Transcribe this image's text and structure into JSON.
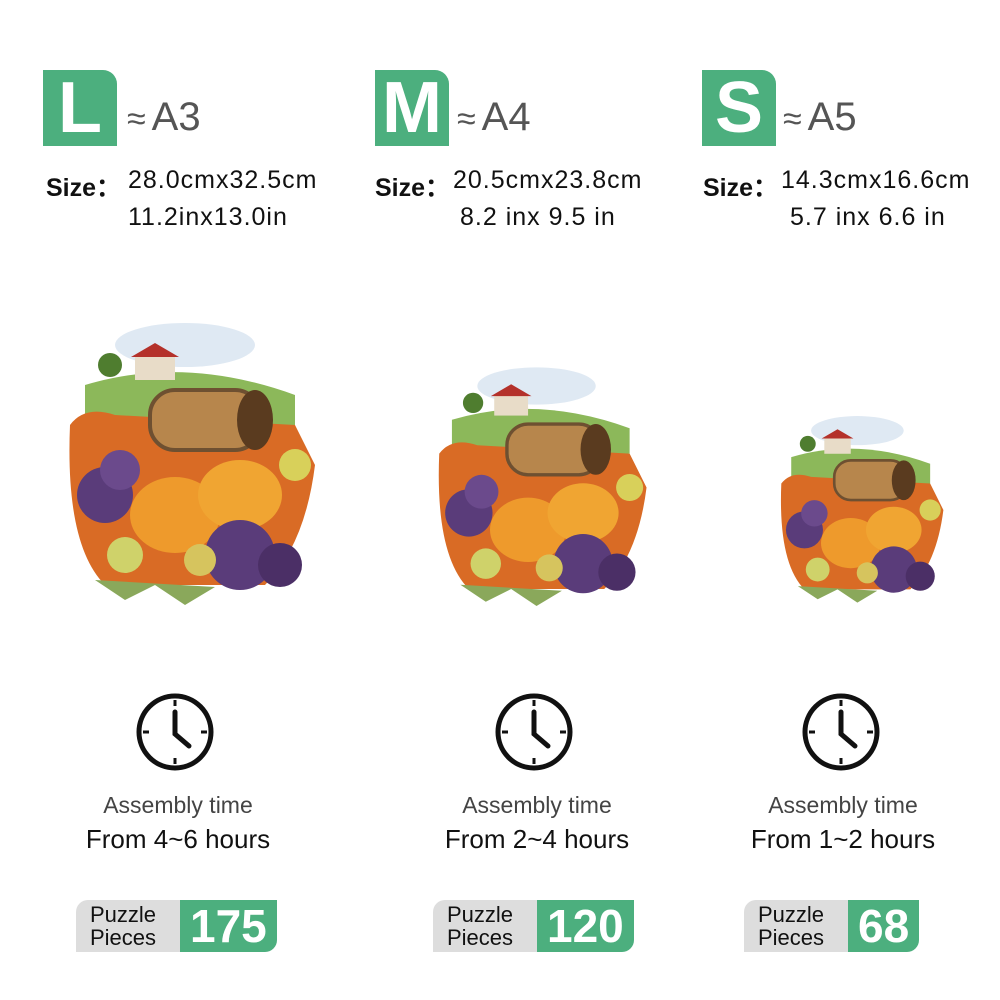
{
  "accent_color": "#4caf7e",
  "approx_symbol": "≈",
  "size_label": "Size：",
  "assembly_label": "Assembly time",
  "pieces_label_line1": "Puzzle",
  "pieces_label_line2": "Pieces",
  "variants": [
    {
      "letter": "L",
      "paper": "A3",
      "dim_cm": "28.0cmx32.5cm",
      "dim_in": "11.2inx13.0in",
      "time": "From 4~6 hours",
      "pieces": "175"
    },
    {
      "letter": "M",
      "paper": "A4",
      "dim_cm": "20.5cmx23.8cm",
      "dim_in": "8.2 inx 9.5 in",
      "time": "From 2~4 hours",
      "pieces": "120"
    },
    {
      "letter": "S",
      "paper": "A5",
      "dim_cm": "14.3cmx16.6cm",
      "dim_in": "5.7 inx 6.6 in",
      "time": "From 1~2 hours",
      "pieces": "68"
    }
  ]
}
